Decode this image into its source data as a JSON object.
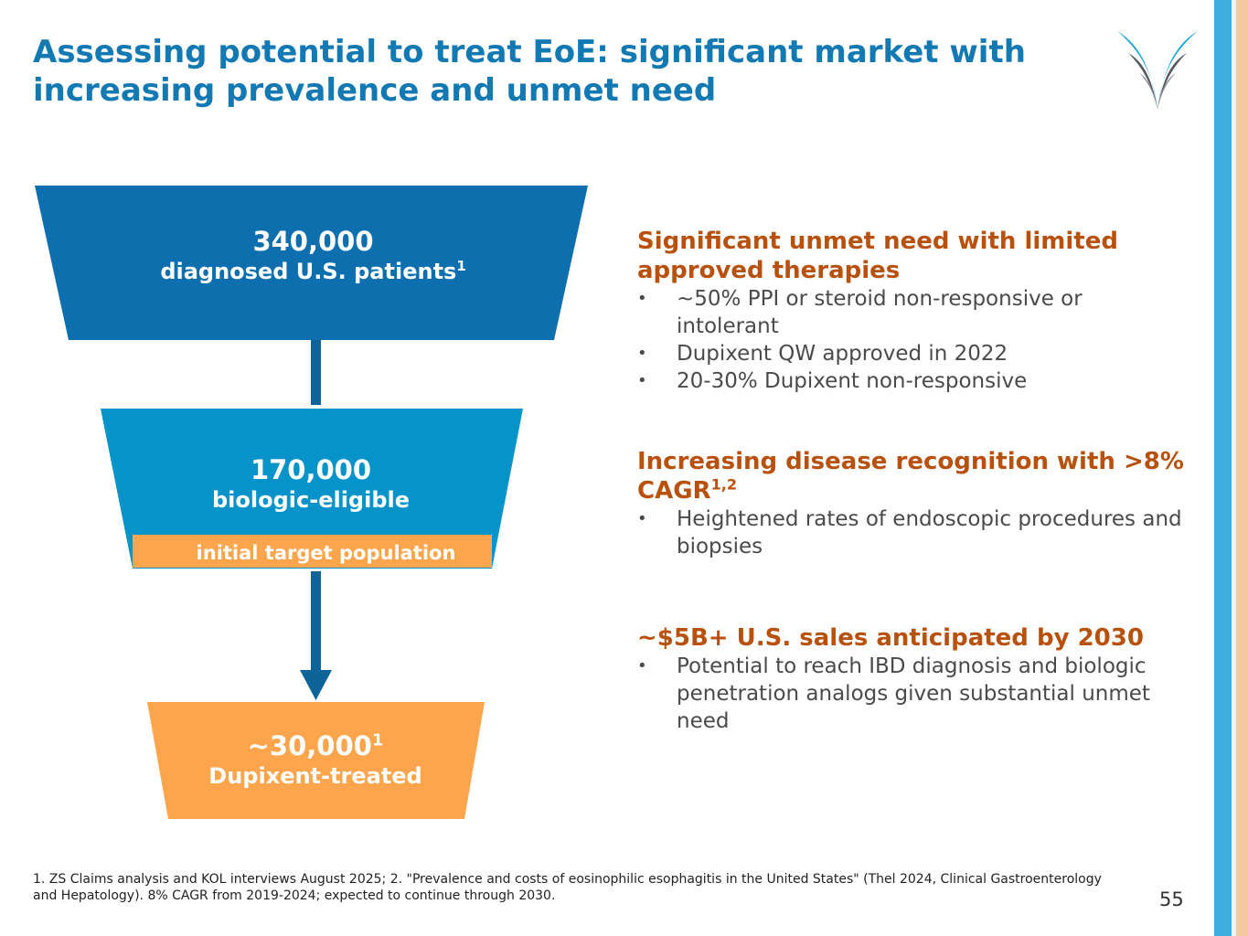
{
  "title": "Assessing potential to treat EoE: significant market with increasing prevalence and unmet need",
  "funnel": {
    "stage1": {
      "value": "340,000",
      "label": "diagnosed U.S. patients",
      "sup": "1"
    },
    "stage2": {
      "value": "170,000",
      "label": "biologic-eligible",
      "target_label": "initial target population"
    },
    "stage3": {
      "value": "~30,000",
      "value_sup": "1",
      "label": "Dupixent-treated"
    }
  },
  "sections": [
    {
      "title": "Significant unmet need with limited approved therapies",
      "bullets": [
        "~50% PPI or steroid non-responsive or intolerant",
        "Dupixent QW approved in 2022",
        "20-30% Dupixent non-responsive"
      ]
    },
    {
      "title": "Increasing disease recognition with >8% CAGR",
      "title_sup": "1,2",
      "bullets": [
        "Heightened rates of endoscopic procedures and biopsies"
      ]
    },
    {
      "title": "~$5B+ U.S. sales anticipated by 2030",
      "bullets": [
        "Potential to reach IBD diagnosis and biologic penetration analogs given substantial unmet need"
      ]
    }
  ],
  "bullet_glyph": "•",
  "footnote": "1. ZS Claims analysis and KOL interviews August 2025; 2. \"Prevalence and costs of eosinophilic esophagitis in the United States\" (Thel 2024, Clinical Gastroenterology and Hepatology). 8% CAGR from 2019-2024; expected to continue through 2030.",
  "page_number": "55",
  "colors": {
    "title_blue": "#1279b3",
    "stage1": "#0d6fad",
    "stage2": "#0693c9",
    "stage3": "#fca54c",
    "arrow": "#0d6498",
    "section_title": "#b8510d",
    "stripe_blue": "#3daee0",
    "stripe_peach": "#f7c7a0"
  }
}
